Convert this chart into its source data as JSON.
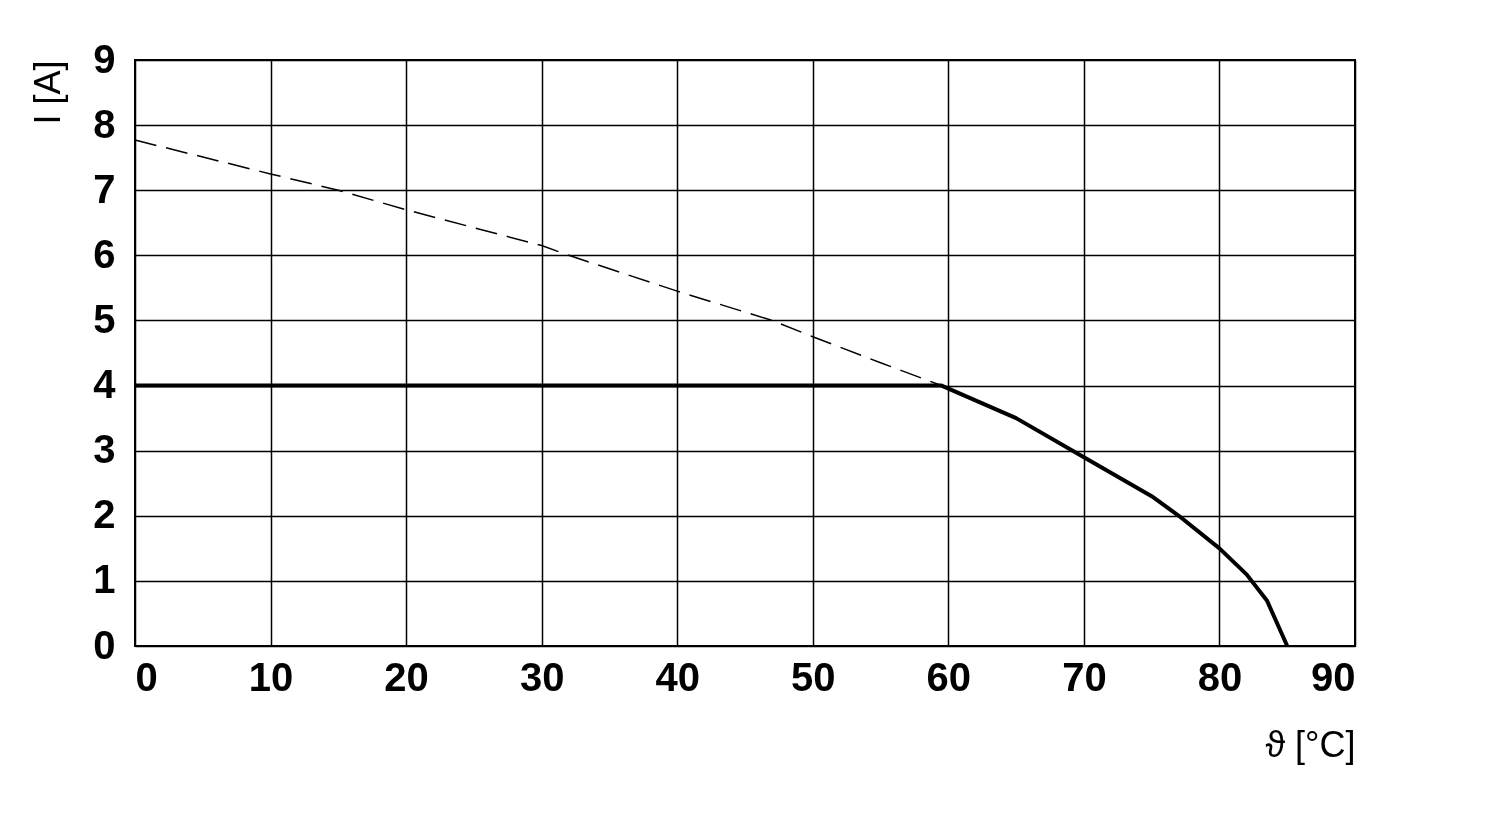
{
  "chart_data": {
    "type": "line",
    "xlabel": "ϑ [°C]",
    "ylabel": "I [A]",
    "xlim": [
      0,
      90
    ],
    "ylim": [
      0,
      9
    ],
    "xticks": [
      0,
      10,
      20,
      30,
      40,
      50,
      60,
      70,
      80,
      90
    ],
    "yticks": [
      0,
      1,
      2,
      3,
      4,
      5,
      6,
      7,
      8,
      9
    ],
    "grid": true,
    "marker": "none",
    "series": [
      {
        "color": "#000000",
        "line_style": "dashed",
        "x": [
          0,
          10,
          15,
          20,
          30,
          32,
          40,
          47,
          50,
          55,
          59.5
        ],
        "values": [
          7.77,
          7.25,
          7.0,
          6.7,
          6.15,
          6.0,
          5.45,
          5.0,
          4.75,
          4.35,
          4.0
        ]
      },
      {
        "color": "#000000",
        "line_style": "solid",
        "x": [
          0,
          59.5,
          65,
          70,
          75,
          77,
          80,
          82,
          83.5,
          85
        ],
        "values": [
          4,
          4,
          3.5,
          2.9,
          2.3,
          2.0,
          1.5,
          1.1,
          0.7,
          0
        ]
      }
    ]
  }
}
